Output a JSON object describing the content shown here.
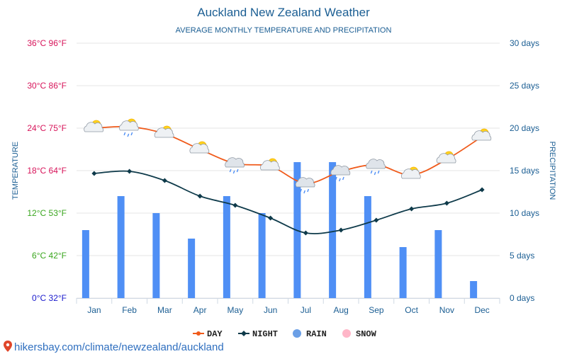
{
  "chart_data": {
    "type": "bar+line",
    "title": "Auckland New Zealand Weather",
    "subtitle": "AVERAGE MONTHLY TEMPERATURE AND PRECIPITATION",
    "categories": [
      "Jan",
      "Feb",
      "Mar",
      "Apr",
      "May",
      "Jun",
      "Jul",
      "Aug",
      "Sep",
      "Oct",
      "Nov",
      "Dec"
    ],
    "y_left": {
      "label": "TEMPERATURE",
      "range": [
        0,
        36
      ],
      "ticks": [
        {
          "value": 0,
          "label": "0°C 32°F",
          "color": "#1a1acd"
        },
        {
          "value": 6,
          "label": "6°C 42°F",
          "color": "#3aa61e"
        },
        {
          "value": 12,
          "label": "12°C 53°F",
          "color": "#3aa61e"
        },
        {
          "value": 18,
          "label": "18°C 64°F",
          "color": "#d7145a"
        },
        {
          "value": 24,
          "label": "24°C 75°F",
          "color": "#d7145a"
        },
        {
          "value": 30,
          "label": "30°C 86°F",
          "color": "#d7145a"
        },
        {
          "value": 36,
          "label": "36°C 96°F",
          "color": "#d7145a"
        }
      ]
    },
    "y_right": {
      "label": "PRECIPITATION",
      "range": [
        0,
        30
      ],
      "ticks": [
        {
          "value": 0,
          "label": "0 days"
        },
        {
          "value": 5,
          "label": "5 days"
        },
        {
          "value": 10,
          "label": "10 days"
        },
        {
          "value": 15,
          "label": "15 days"
        },
        {
          "value": 20,
          "label": "20 days"
        },
        {
          "value": 25,
          "label": "25 days"
        },
        {
          "value": 30,
          "label": "30 days"
        }
      ]
    },
    "series": [
      {
        "name": "DAY",
        "type": "line",
        "axis": "left",
        "color": "#f05a1a",
        "values": [
          24,
          24.2,
          23.2,
          21,
          19,
          18.6,
          16.2,
          17.9,
          18.8,
          17.4,
          19.6,
          22.8
        ]
      },
      {
        "name": "NIGHT",
        "type": "line",
        "axis": "left",
        "color": "#0e3a4a",
        "values": [
          17.6,
          17.9,
          16.6,
          14.4,
          13.1,
          11.3,
          9.2,
          9.6,
          11,
          12.6,
          13.4,
          15.3
        ]
      },
      {
        "name": "RAIN",
        "type": "bar",
        "axis": "right",
        "color": "#4f8ff5",
        "values": [
          8,
          12,
          10,
          7,
          12,
          10,
          16,
          16,
          12,
          6,
          8,
          2
        ]
      },
      {
        "name": "SNOW",
        "type": "bar",
        "axis": "right",
        "color": "#ffb6c8",
        "values": [
          0,
          0,
          0,
          0,
          0,
          0,
          0,
          0,
          0,
          0,
          0,
          0
        ]
      }
    ],
    "weather_icons": [
      "sun-cloud",
      "sun-cloud-rain",
      "sun-cloud",
      "sun-cloud",
      "cloud-rain",
      "sun-cloud",
      "cloud-rain",
      "cloud-rain",
      "cloud-rain",
      "sun-cloud",
      "sun-cloud",
      "sun-cloud"
    ],
    "legend": {
      "position": "bottom",
      "items": [
        {
          "label": "DAY",
          "marker": "line-dot",
          "color": "#f05a1a"
        },
        {
          "label": "NIGHT",
          "marker": "line-diamond",
          "color": "#0e3a4a"
        },
        {
          "label": "RAIN",
          "marker": "circle",
          "color": "#6b9fe6"
        },
        {
          "label": "SNOW",
          "marker": "circle",
          "color": "#ffb6c8"
        }
      ]
    },
    "grid": true
  },
  "footer": {
    "text": "hikersbay.com/climate/newzealand/auckland",
    "color": "#2f6fbf"
  },
  "colors": {
    "title": "#1b5e93",
    "axis_right": "#1b5e93",
    "axis_label": "#1b5e93",
    "gridline": "#e6e6e6"
  }
}
